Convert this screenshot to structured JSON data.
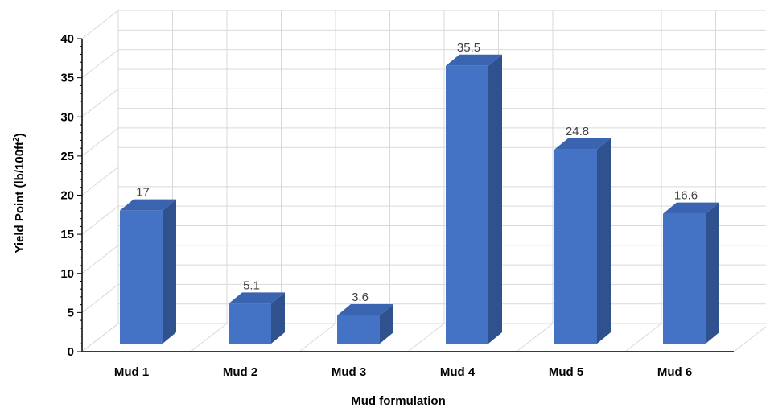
{
  "chart_data": {
    "type": "bar",
    "categories": [
      "Mud 1",
      "Mud 2",
      "Mud 3",
      "Mud 4",
      "Mud 5",
      "Mud 6"
    ],
    "values": [
      17,
      5.1,
      3.6,
      35.5,
      24.8,
      16.6
    ],
    "data_labels": [
      "17",
      "5.1",
      "3.6",
      "35.5",
      "24.8",
      "16.6"
    ],
    "xlabel": "Mud formulation",
    "ylabel_main": "Yield Point (lb/100ft",
    "ylabel_sup": "2",
    "ylabel_close": ")",
    "ylim": [
      0,
      40
    ],
    "yticks": [
      0,
      5,
      10,
      15,
      20,
      25,
      30,
      35,
      40
    ],
    "grid": true,
    "style": "3d-column",
    "colors": {
      "bar_front": "#4472C4",
      "bar_side": "#2F528F",
      "bar_top": "#3A64B0",
      "grid": "#D9D9D9",
      "baseline": "#C00000"
    }
  }
}
